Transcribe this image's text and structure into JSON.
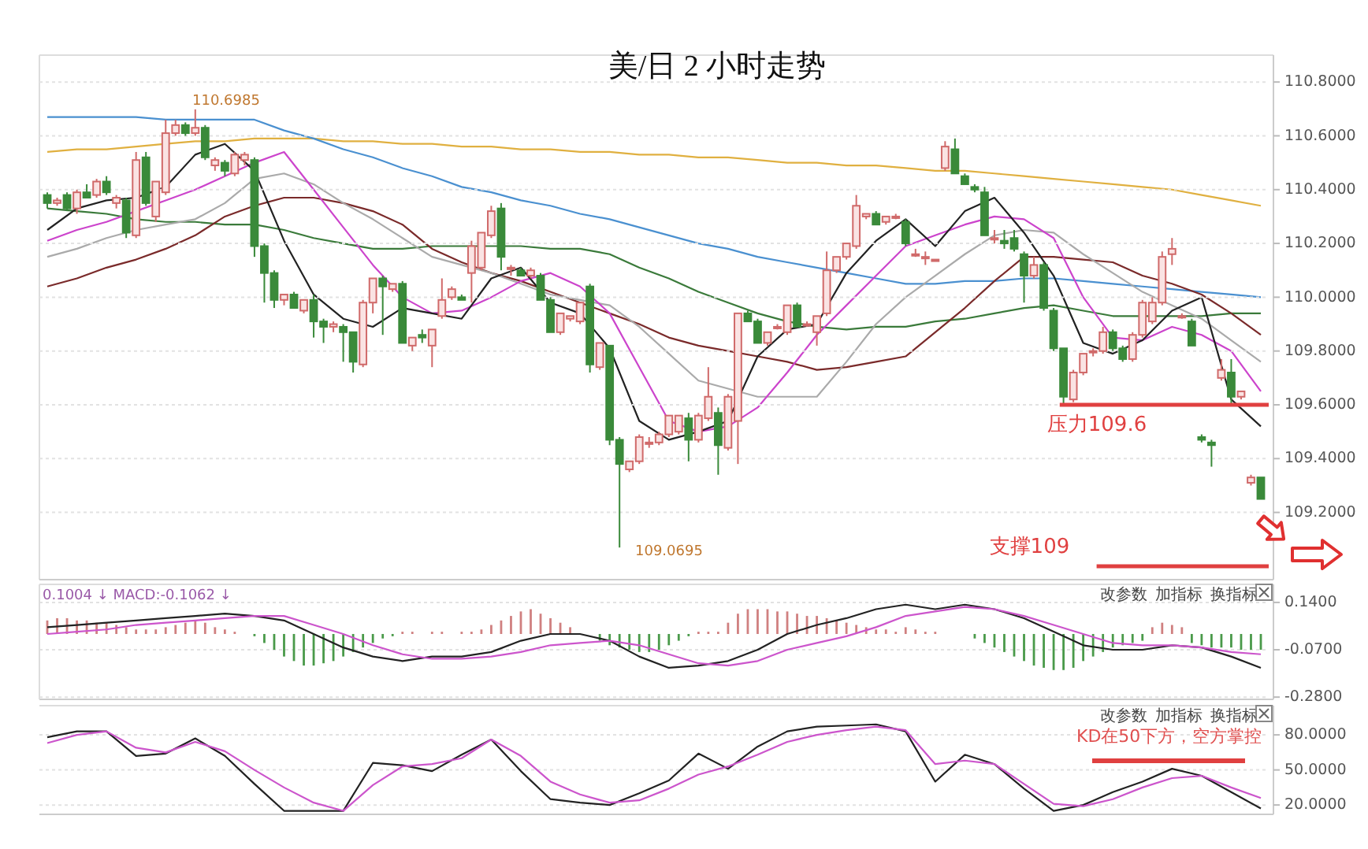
{
  "chart_data": [
    {
      "type": "candlestick",
      "title": "美/日 2 小时走势",
      "categories": [
        null,
        null,
        null,
        null,
        null,
        null,
        null,
        null,
        null,
        null,
        null,
        null,
        null,
        null,
        null,
        null,
        null,
        null,
        null,
        null,
        null,
        null,
        null,
        null,
        null,
        null,
        null,
        null,
        null,
        null,
        null,
        null,
        null,
        null,
        null,
        null,
        null,
        null,
        null,
        null,
        null,
        null,
        null,
        null,
        null,
        null,
        null,
        null,
        null,
        null,
        null,
        null,
        null,
        null,
        null,
        null,
        null,
        null,
        null,
        null,
        null,
        null,
        null,
        null,
        null,
        null,
        null,
        null,
        null,
        null,
        null,
        null,
        null,
        null,
        null,
        null,
        null,
        null,
        null,
        null,
        null,
        null,
        null,
        null,
        null,
        null,
        null,
        null,
        null,
        null,
        null,
        null,
        null,
        null,
        null,
        null,
        null,
        null,
        null,
        null,
        null,
        null,
        null,
        null,
        null,
        null,
        null,
        null,
        null,
        null,
        null,
        null,
        null,
        null,
        null,
        null,
        null,
        null,
        null,
        null,
        null,
        null,
        null,
        null
      ],
      "ylim": [
        108.95,
        110.9
      ],
      "yticks": [
        {
          "value": 109.2,
          "label": "109.2000"
        },
        {
          "value": 109.4,
          "label": "109.4000"
        },
        {
          "value": 109.6,
          "label": "109.6000"
        },
        {
          "value": 109.8,
          "label": "109.8000"
        },
        {
          "value": 110.0,
          "label": "110.0000"
        },
        {
          "value": 110.2,
          "label": "110.2000"
        },
        {
          "value": 110.4,
          "label": "110.4000"
        },
        {
          "value": 110.6,
          "label": "110.6000"
        },
        {
          "value": 110.8,
          "label": "110.8000"
        }
      ],
      "grid": "y",
      "tick_labels": "y",
      "ohlc": [
        [
          110.38,
          110.39,
          110.33,
          110.35
        ],
        [
          110.35,
          110.37,
          110.34,
          110.36
        ],
        [
          110.38,
          110.39,
          110.32,
          110.33
        ],
        [
          110.33,
          110.4,
          110.31,
          110.39
        ],
        [
          110.39,
          110.42,
          110.37,
          110.37
        ],
        [
          110.38,
          110.44,
          110.37,
          110.43
        ],
        [
          110.43,
          110.45,
          110.38,
          110.39
        ],
        [
          110.35,
          110.38,
          110.33,
          110.37
        ],
        [
          110.36,
          110.37,
          110.22,
          110.24
        ],
        [
          110.23,
          110.54,
          110.22,
          110.51
        ],
        [
          110.52,
          110.54,
          110.34,
          110.35
        ],
        [
          110.3,
          110.43,
          110.28,
          110.43
        ],
        [
          110.39,
          110.66,
          110.38,
          110.61
        ],
        [
          110.61,
          110.66,
          110.6,
          110.64
        ],
        [
          110.64,
          110.65,
          110.6,
          110.61
        ],
        [
          110.61,
          110.6985,
          110.6,
          110.63
        ],
        [
          110.63,
          110.64,
          110.51,
          110.52
        ],
        [
          110.49,
          110.52,
          110.47,
          110.51
        ],
        [
          110.5,
          110.51,
          110.45,
          110.47
        ],
        [
          110.46,
          110.54,
          110.45,
          110.53
        ],
        [
          110.51,
          110.54,
          110.49,
          110.53
        ],
        [
          110.51,
          110.52,
          110.15,
          110.19
        ],
        [
          110.19,
          110.2,
          109.98,
          110.09
        ],
        [
          110.09,
          110.1,
          109.96,
          109.99
        ],
        [
          109.99,
          110.01,
          109.97,
          110.01
        ],
        [
          110.01,
          110.02,
          109.96,
          109.96
        ],
        [
          109.95,
          109.99,
          109.94,
          109.99
        ],
        [
          109.99,
          110.01,
          109.85,
          109.91
        ],
        [
          109.91,
          109.92,
          109.83,
          109.89
        ],
        [
          109.89,
          109.91,
          109.87,
          109.9
        ],
        [
          109.89,
          109.9,
          109.76,
          109.87
        ],
        [
          109.87,
          109.87,
          109.72,
          109.76
        ],
        [
          109.75,
          109.99,
          109.74,
          109.98
        ],
        [
          109.98,
          110.07,
          109.94,
          110.07
        ],
        [
          110.07,
          110.08,
          109.86,
          110.04
        ],
        [
          110.03,
          110.05,
          110.02,
          110.05
        ],
        [
          110.05,
          110.06,
          109.83,
          109.83
        ],
        [
          109.82,
          109.85,
          109.8,
          109.85
        ],
        [
          109.86,
          109.88,
          109.83,
          109.85
        ],
        [
          109.82,
          109.88,
          109.74,
          109.88
        ],
        [
          109.93,
          110.07,
          109.92,
          109.99
        ],
        [
          110.0,
          110.04,
          109.99,
          110.03
        ],
        [
          110.0,
          110.01,
          109.99,
          109.99
        ],
        [
          110.09,
          110.21,
          109.98,
          110.19
        ],
        [
          110.11,
          110.24,
          110.1,
          110.24
        ],
        [
          110.23,
          110.34,
          110.22,
          110.32
        ],
        [
          110.33,
          110.35,
          110.1,
          110.15
        ],
        [
          110.11,
          110.12,
          110.08,
          110.11
        ],
        [
          110.1,
          110.11,
          110.08,
          110.08
        ],
        [
          110.08,
          110.11,
          110.07,
          110.1
        ],
        [
          110.08,
          110.09,
          109.99,
          109.99
        ],
        [
          109.99,
          110.0,
          109.87,
          109.87
        ],
        [
          109.87,
          109.94,
          109.86,
          109.94
        ],
        [
          109.92,
          109.93,
          109.91,
          109.93
        ],
        [
          109.91,
          109.98,
          109.9,
          109.98
        ],
        [
          110.04,
          110.05,
          109.72,
          109.75
        ],
        [
          109.74,
          109.83,
          109.73,
          109.83
        ],
        [
          109.82,
          109.82,
          109.45,
          109.47
        ],
        [
          109.47,
          109.48,
          109.0695,
          109.38
        ],
        [
          109.36,
          109.39,
          109.35,
          109.39
        ],
        [
          109.39,
          109.49,
          109.38,
          109.48
        ],
        [
          109.46,
          109.48,
          109.44,
          109.46
        ],
        [
          109.46,
          109.5,
          109.45,
          109.49
        ],
        [
          109.49,
          109.56,
          109.48,
          109.56
        ],
        [
          109.5,
          109.56,
          109.49,
          109.56
        ],
        [
          109.55,
          109.57,
          109.39,
          109.47
        ],
        [
          109.47,
          109.57,
          109.46,
          109.56
        ],
        [
          109.55,
          109.74,
          109.54,
          109.63
        ],
        [
          109.57,
          109.59,
          109.34,
          109.45
        ],
        [
          109.44,
          109.64,
          109.43,
          109.63
        ],
        [
          109.54,
          109.94,
          109.38,
          109.94
        ],
        [
          109.94,
          109.95,
          109.91,
          109.91
        ],
        [
          109.91,
          109.92,
          109.83,
          109.83
        ],
        [
          109.83,
          109.87,
          109.82,
          109.87
        ],
        [
          109.89,
          109.9,
          109.88,
          109.89
        ],
        [
          109.87,
          109.97,
          109.86,
          109.97
        ],
        [
          109.97,
          109.98,
          109.89,
          109.89
        ],
        [
          109.9,
          109.91,
          109.89,
          109.9
        ],
        [
          109.87,
          109.93,
          109.82,
          109.93
        ],
        [
          109.94,
          110.17,
          109.93,
          110.1
        ],
        [
          110.1,
          110.15,
          110.09,
          110.15
        ],
        [
          110.15,
          110.2,
          110.14,
          110.2
        ],
        [
          110.19,
          110.38,
          110.18,
          110.34
        ],
        [
          110.3,
          110.31,
          110.29,
          110.31
        ],
        [
          110.31,
          110.32,
          110.27,
          110.27
        ],
        [
          110.28,
          110.3,
          110.27,
          110.3
        ],
        [
          110.3,
          110.31,
          110.29,
          110.3
        ],
        [
          110.28,
          110.29,
          110.19,
          110.2
        ],
        [
          110.16,
          110.18,
          110.15,
          110.16
        ],
        [
          110.15,
          110.17,
          110.12,
          110.15
        ],
        [
          110.14,
          110.14,
          110.14,
          110.14
        ],
        [
          110.48,
          110.58,
          110.47,
          110.56
        ],
        [
          110.55,
          110.59,
          110.46,
          110.46
        ],
        [
          110.45,
          110.46,
          110.42,
          110.42
        ],
        [
          110.41,
          110.42,
          110.39,
          110.4
        ],
        [
          110.39,
          110.41,
          110.23,
          110.23
        ],
        [
          110.22,
          110.25,
          110.2,
          110.22
        ],
        [
          110.21,
          110.25,
          110.18,
          110.2
        ],
        [
          110.22,
          110.25,
          110.17,
          110.18
        ],
        [
          110.16,
          110.17,
          109.98,
          110.08
        ],
        [
          110.08,
          110.15,
          110.07,
          110.12
        ],
        [
          110.12,
          110.13,
          109.95,
          109.96
        ],
        [
          109.95,
          109.96,
          109.8,
          109.81
        ],
        [
          109.81,
          109.81,
          109.6,
          109.63
        ],
        [
          109.62,
          109.73,
          109.61,
          109.72
        ],
        [
          109.72,
          109.79,
          109.71,
          109.79
        ],
        [
          109.8,
          109.81,
          109.78,
          109.8
        ],
        [
          109.8,
          109.89,
          109.79,
          109.87
        ],
        [
          109.87,
          109.88,
          109.8,
          109.81
        ],
        [
          109.81,
          109.82,
          109.76,
          109.77
        ],
        [
          109.77,
          109.87,
          109.76,
          109.86
        ],
        [
          109.86,
          109.99,
          109.85,
          109.98
        ],
        [
          109.91,
          110.0,
          109.9,
          109.98
        ],
        [
          109.98,
          110.17,
          109.97,
          110.15
        ],
        [
          110.16,
          110.22,
          110.12,
          110.18
        ],
        [
          109.93,
          109.94,
          109.92,
          109.93
        ],
        [
          109.91,
          109.92,
          109.82,
          109.82
        ],
        [
          109.48,
          109.49,
          109.46,
          109.47
        ],
        [
          109.46,
          109.47,
          109.37,
          109.45
        ],
        [
          109.7,
          109.77,
          109.69,
          109.73
        ],
        [
          109.72,
          109.77,
          109.6,
          109.63
        ],
        [
          109.63,
          109.65,
          109.62,
          109.65
        ],
        [
          109.31,
          109.34,
          109.3,
          109.33
        ],
        [
          109.33,
          109.33,
          109.25,
          109.25
        ]
      ],
      "ref_lines": [
        {
          "axis": "y",
          "value": 109.6,
          "label": "压力109.6",
          "color": "#e04040"
        },
        {
          "axis": "y",
          "value": 109.0,
          "label": "支撑109",
          "color": "#e04040"
        }
      ],
      "annotations": [
        "110.6985",
        "109.0695"
      ]
    },
    {
      "type": "line",
      "categories": [
        null,
        null,
        null,
        null,
        null,
        null,
        null,
        null,
        null,
        null,
        null,
        null,
        null,
        null,
        null,
        null,
        null,
        null,
        null,
        null,
        null,
        null,
        null,
        null,
        null,
        null,
        null,
        null,
        null,
        null,
        null,
        null,
        null,
        null,
        null,
        null,
        null,
        null,
        null,
        null,
        null,
        null
      ],
      "ylim": [
        108.95,
        110.9
      ],
      "tick_labels": false,
      "series": [
        {
          "type": "line",
          "color": "#e0b040",
          "values": [
            110.54,
            110.55,
            110.55,
            110.56,
            110.57,
            110.58,
            110.58,
            110.59,
            110.59,
            110.59,
            110.58,
            110.58,
            110.57,
            110.57,
            110.56,
            110.56,
            110.55,
            110.55,
            110.54,
            110.54,
            110.53,
            110.53,
            110.52,
            110.52,
            110.51,
            110.5,
            110.5,
            110.49,
            110.49,
            110.48,
            110.47,
            110.47,
            110.46,
            110.45,
            110.44,
            110.43,
            110.42,
            110.41,
            110.4,
            110.38,
            110.36,
            110.34
          ]
        },
        {
          "type": "line",
          "color": "#4a90d0",
          "values": [
            110.67,
            110.67,
            110.67,
            110.67,
            110.66,
            110.66,
            110.66,
            110.66,
            110.62,
            110.59,
            110.55,
            110.52,
            110.48,
            110.45,
            110.41,
            110.39,
            110.36,
            110.34,
            110.31,
            110.29,
            110.26,
            110.23,
            110.2,
            110.18,
            110.15,
            110.13,
            110.11,
            110.09,
            110.07,
            110.05,
            110.05,
            110.06,
            110.06,
            110.07,
            110.07,
            110.06,
            110.05,
            110.04,
            110.03,
            110.02,
            110.01,
            110.0
          ]
        },
        {
          "type": "line",
          "color": "#3a7a3a",
          "values": [
            110.33,
            110.32,
            110.31,
            110.29,
            110.28,
            110.28,
            110.27,
            110.27,
            110.25,
            110.22,
            110.2,
            110.18,
            110.18,
            110.19,
            110.19,
            110.19,
            110.19,
            110.18,
            110.18,
            110.16,
            110.11,
            110.07,
            110.02,
            109.98,
            109.94,
            109.91,
            109.89,
            109.88,
            109.89,
            109.89,
            109.91,
            109.92,
            109.94,
            109.96,
            109.97,
            109.95,
            109.93,
            109.93,
            109.93,
            109.93,
            109.94,
            109.94
          ]
        },
        {
          "type": "line",
          "color": "#7a2a2a",
          "values": [
            110.04,
            110.07,
            110.11,
            110.14,
            110.18,
            110.23,
            110.3,
            110.34,
            110.37,
            110.37,
            110.35,
            110.32,
            110.27,
            110.18,
            110.13,
            110.09,
            110.06,
            110.02,
            109.98,
            109.94,
            109.9,
            109.85,
            109.82,
            109.8,
            109.78,
            109.76,
            109.73,
            109.74,
            109.76,
            109.78,
            109.87,
            109.96,
            110.06,
            110.15,
            110.15,
            110.14,
            110.13,
            110.08,
            110.05,
            110.01,
            109.94,
            109.86
          ]
        },
        {
          "type": "line",
          "color": "#aaaaaa",
          "values": [
            110.15,
            110.18,
            110.22,
            110.25,
            110.27,
            110.29,
            110.35,
            110.44,
            110.46,
            110.42,
            110.35,
            110.29,
            110.22,
            110.15,
            110.12,
            110.09,
            110.05,
            110.01,
            109.99,
            109.97,
            109.89,
            109.79,
            109.69,
            109.66,
            109.63,
            109.63,
            109.63,
            109.76,
            109.9,
            110.0,
            110.08,
            110.16,
            110.23,
            110.25,
            110.24,
            110.16,
            110.09,
            110.02,
            109.97,
            109.92,
            109.84,
            109.76
          ]
        },
        {
          "type": "line",
          "color": "#cc44cc",
          "values": [
            110.21,
            110.25,
            110.28,
            110.32,
            110.36,
            110.4,
            110.45,
            110.5,
            110.54,
            110.4,
            110.26,
            110.12,
            110.0,
            109.94,
            109.95,
            110.0,
            110.06,
            110.09,
            110.04,
            109.94,
            109.74,
            109.54,
            109.5,
            109.52,
            109.59,
            109.72,
            109.86,
            109.97,
            110.08,
            110.19,
            110.23,
            110.27,
            110.3,
            110.29,
            110.22,
            110.0,
            109.85,
            109.84,
            109.89,
            109.86,
            109.8,
            109.65
          ]
        },
        {
          "type": "line",
          "color": "#222222",
          "values": [
            110.25,
            110.33,
            110.36,
            110.37,
            110.41,
            110.53,
            110.57,
            110.47,
            110.21,
            110.01,
            109.92,
            109.89,
            109.96,
            109.94,
            109.92,
            110.07,
            110.11,
            109.98,
            109.94,
            109.81,
            109.54,
            109.47,
            109.5,
            109.54,
            109.78,
            109.88,
            109.9,
            110.09,
            110.21,
            110.29,
            110.19,
            110.32,
            110.37,
            110.24,
            110.08,
            109.83,
            109.79,
            109.84,
            109.95,
            110.0,
            109.62,
            109.52
          ]
        }
      ]
    },
    {
      "type": "bar",
      "categories": [
        null,
        null,
        null,
        null,
        null,
        null,
        null,
        null,
        null,
        null,
        null,
        null,
        null,
        null,
        null,
        null,
        null,
        null,
        null,
        null,
        null,
        null,
        null,
        null,
        null,
        null,
        null,
        null,
        null,
        null,
        null,
        null,
        null,
        null,
        null,
        null,
        null,
        null,
        null,
        null,
        null,
        null,
        null,
        null,
        null,
        null,
        null,
        null,
        null,
        null,
        null,
        null,
        null,
        null,
        null,
        null,
        null,
        null,
        null,
        null,
        null,
        null,
        null,
        null,
        null,
        null,
        null,
        null,
        null,
        null,
        null,
        null,
        null,
        null,
        null,
        null,
        null,
        null,
        null,
        null,
        null,
        null,
        null,
        null,
        null,
        null,
        null,
        null,
        null,
        null,
        null,
        null,
        null,
        null,
        null,
        null,
        null,
        null,
        null,
        null,
        null,
        null,
        null,
        null,
        null,
        null,
        null,
        null,
        null,
        null,
        null,
        null,
        null,
        null,
        null,
        null,
        null,
        null,
        null,
        null,
        null,
        null,
        null,
        null
      ],
      "ylim": [
        -0.29,
        0.22
      ],
      "yticks": [
        {
          "value": -0.28,
          "label": "-0.2800"
        },
        {
          "value": -0.07,
          "label": "-0.0700"
        },
        {
          "value": 0.14,
          "label": "0.1400"
        }
      ],
      "grid": "y",
      "tick_labels": "y",
      "annotations": [
        "0.1004 ↓ MACD:-0.1062 ↓",
        "改参数",
        "加指标",
        "换指标"
      ],
      "series": [
        {
          "type": "bar",
          "values": [
            0.06,
            0.07,
            0.07,
            0.06,
            0.06,
            0.05,
            0.05,
            0.04,
            0.03,
            0.02,
            0.02,
            0.02,
            0.03,
            0.04,
            0.05,
            0.06,
            0.05,
            0.03,
            0.02,
            0.01,
            0,
            -0.01,
            -0.04,
            -0.07,
            -0.1,
            -0.12,
            -0.14,
            -0.14,
            -0.13,
            -0.12,
            -0.1,
            -0.08,
            -0.06,
            -0.04,
            -0.02,
            -0.01,
            0.01,
            0.01,
            0,
            0.01,
            0.01,
            0,
            0.01,
            0.01,
            0.02,
            0.04,
            0.06,
            0.08,
            0.1,
            0.11,
            0.09,
            0.07,
            0.05,
            0.03,
            null,
            null,
            -0.03,
            -0.05,
            -0.06,
            -0.07,
            -0.08,
            -0.08,
            -0.07,
            -0.05,
            -0.03,
            -0.01,
            0.01,
            0.01,
            0.01,
            0.05,
            0.09,
            0.11,
            0.11,
            0.11,
            0.1,
            0.1,
            0.09,
            0.08,
            0.08,
            0.07,
            0.06,
            0.05,
            0.04,
            0.03,
            0.02,
            0.02,
            0.01,
            0.03,
            0.02,
            0.01,
            0.01,
            0,
            0,
            0,
            -0.02,
            -0.04,
            -0.06,
            -0.08,
            -0.1,
            -0.12,
            -0.14,
            -0.15,
            -0.16,
            -0.16,
            -0.15,
            -0.12,
            -0.1,
            -0.08,
            -0.06,
            -0.05,
            -0.04,
            -0.03,
            0.03,
            0.05,
            0.04,
            0.03,
            -0.04,
            -0.05,
            -0.06,
            -0.06,
            -0.06,
            -0.07,
            -0.07,
            -0.07
          ],
          "colors": [
            "#d08080",
            "#d08080",
            "#d08080",
            "#d08080",
            "#d08080",
            "#d08080",
            "#d08080",
            "#d08080",
            "#d08080",
            "#d08080",
            "#d08080",
            "#d08080",
            "#d08080",
            "#d08080",
            "#d08080",
            "#d08080",
            "#d08080",
            "#d08080",
            "#d08080",
            "#d08080",
            "#d08080",
            "#4a9a4a",
            "#4a9a4a",
            "#4a9a4a",
            "#4a9a4a",
            "#4a9a4a",
            "#4a9a4a",
            "#4a9a4a",
            "#4a9a4a",
            "#4a9a4a",
            "#4a9a4a",
            "#4a9a4a",
            "#4a9a4a",
            "#4a9a4a",
            "#4a9a4a",
            "#4a9a4a",
            "#d08080",
            "#d08080",
            "#d08080",
            "#d08080",
            "#d08080",
            "#d08080",
            "#d08080",
            "#d08080",
            "#d08080",
            "#d08080",
            "#d08080",
            "#d08080",
            "#d08080",
            "#d08080",
            "#d08080",
            "#d08080",
            "#d08080",
            "#d08080",
            null,
            null,
            "#4a9a4a",
            "#4a9a4a",
            "#4a9a4a",
            "#4a9a4a",
            "#4a9a4a",
            "#4a9a4a",
            "#4a9a4a",
            "#4a9a4a",
            "#4a9a4a",
            "#4a9a4a",
            "#d08080",
            "#d08080",
            "#d08080",
            "#d08080",
            "#d08080",
            "#d08080",
            "#d08080",
            "#d08080",
            "#d08080",
            "#d08080",
            "#d08080",
            "#d08080",
            "#d08080",
            "#d08080",
            "#d08080",
            "#d08080",
            "#d08080",
            "#d08080",
            "#d08080",
            "#d08080",
            "#d08080",
            "#d08080",
            "#d08080",
            "#d08080",
            "#d08080",
            "#d08080",
            "#d08080",
            "#d08080",
            "#4a9a4a",
            "#4a9a4a",
            "#4a9a4a",
            "#4a9a4a",
            "#4a9a4a",
            "#4a9a4a",
            "#4a9a4a",
            "#4a9a4a",
            "#4a9a4a",
            "#4a9a4a",
            "#4a9a4a",
            "#4a9a4a",
            "#4a9a4a",
            "#4a9a4a",
            "#4a9a4a",
            "#4a9a4a",
            "#4a9a4a",
            "#4a9a4a",
            "#d08080",
            "#d08080",
            "#d08080",
            "#d08080",
            "#4a9a4a",
            "#4a9a4a",
            "#4a9a4a",
            "#4a9a4a",
            "#4a9a4a",
            "#4a9a4a",
            "#4a9a4a",
            "#4a9a4a"
          ]
        }
      ]
    },
    {
      "type": "line",
      "categories": [
        null,
        null,
        null,
        null,
        null,
        null,
        null,
        null,
        null,
        null,
        null,
        null,
        null,
        null,
        null,
        null,
        null,
        null,
        null,
        null,
        null,
        null,
        null,
        null,
        null,
        null,
        null,
        null,
        null,
        null,
        null,
        null,
        null,
        null,
        null,
        null,
        null,
        null,
        null,
        null,
        null,
        null
      ],
      "ylim": [
        -0.29,
        0.22
      ],
      "tick_labels": false,
      "series": [
        {
          "type": "line",
          "color": "#222222",
          "values": [
            0.03,
            0.04,
            0.05,
            0.06,
            0.07,
            0.08,
            0.09,
            0.08,
            0.06,
            0.0,
            -0.06,
            -0.1,
            -0.12,
            -0.1,
            -0.1,
            -0.08,
            -0.03,
            0.0,
            0.0,
            -0.03,
            -0.1,
            -0.15,
            -0.14,
            -0.12,
            -0.07,
            0.0,
            0.04,
            0.07,
            0.11,
            0.13,
            0.11,
            0.13,
            0.11,
            0.07,
            0.01,
            -0.05,
            -0.07,
            -0.07,
            -0.05,
            -0.06,
            -0.1,
            -0.15
          ]
        },
        {
          "type": "line",
          "color": "#cc55cc",
          "values": [
            0.0,
            0.01,
            0.02,
            0.04,
            0.05,
            0.06,
            0.07,
            0.08,
            0.08,
            0.04,
            0.0,
            -0.05,
            -0.09,
            -0.11,
            -0.11,
            -0.1,
            -0.08,
            -0.05,
            -0.04,
            -0.03,
            -0.05,
            -0.09,
            -0.13,
            -0.14,
            -0.12,
            -0.07,
            -0.04,
            -0.01,
            0.03,
            0.08,
            0.1,
            0.12,
            0.11,
            0.08,
            0.04,
            0.0,
            -0.04,
            -0.05,
            -0.05,
            -0.06,
            -0.08,
            -0.09
          ]
        }
      ]
    },
    {
      "type": "line",
      "categories": [
        null,
        null,
        null,
        null,
        null,
        null,
        null,
        null,
        null,
        null,
        null,
        null,
        null,
        null,
        null,
        null,
        null,
        null,
        null,
        null,
        null,
        null,
        null,
        null,
        null,
        null,
        null,
        null,
        null,
        null,
        null,
        null,
        null,
        null,
        null,
        null,
        null,
        null,
        null,
        null,
        null,
        null
      ],
      "ylim": [
        12,
        105
      ],
      "yticks": [
        {
          "value": 20,
          "label": "20.0000"
        },
        {
          "value": 50,
          "label": "50.0000"
        },
        {
          "value": 80,
          "label": "80.0000"
        }
      ],
      "grid": "y",
      "tick_labels": "y",
      "annotations": [
        "改参数",
        "加指标",
        "换指标",
        "KD在50下方，空方掌控"
      ],
      "series": [
        {
          "type": "line",
          "color": "#222222",
          "values": [
            78,
            83,
            83,
            62,
            64,
            77,
            62,
            38,
            15,
            15,
            15,
            56,
            54,
            49,
            63,
            76,
            49,
            25,
            22,
            20,
            30,
            41,
            64,
            51,
            70,
            83,
            87,
            88,
            89,
            83,
            40,
            63,
            55,
            34,
            15,
            20,
            31,
            40,
            51,
            45,
            31,
            17
          ]
        },
        {
          "type": "line",
          "color": "#cc55cc",
          "values": [
            73,
            80,
            83,
            69,
            65,
            74,
            66,
            50,
            35,
            22,
            15,
            37,
            53,
            55,
            60,
            76,
            62,
            40,
            29,
            22,
            24,
            34,
            46,
            53,
            63,
            74,
            80,
            84,
            87,
            84,
            55,
            58,
            55,
            38,
            21,
            19,
            25,
            35,
            43,
            45,
            35,
            26
          ]
        }
      ]
    }
  ]
}
